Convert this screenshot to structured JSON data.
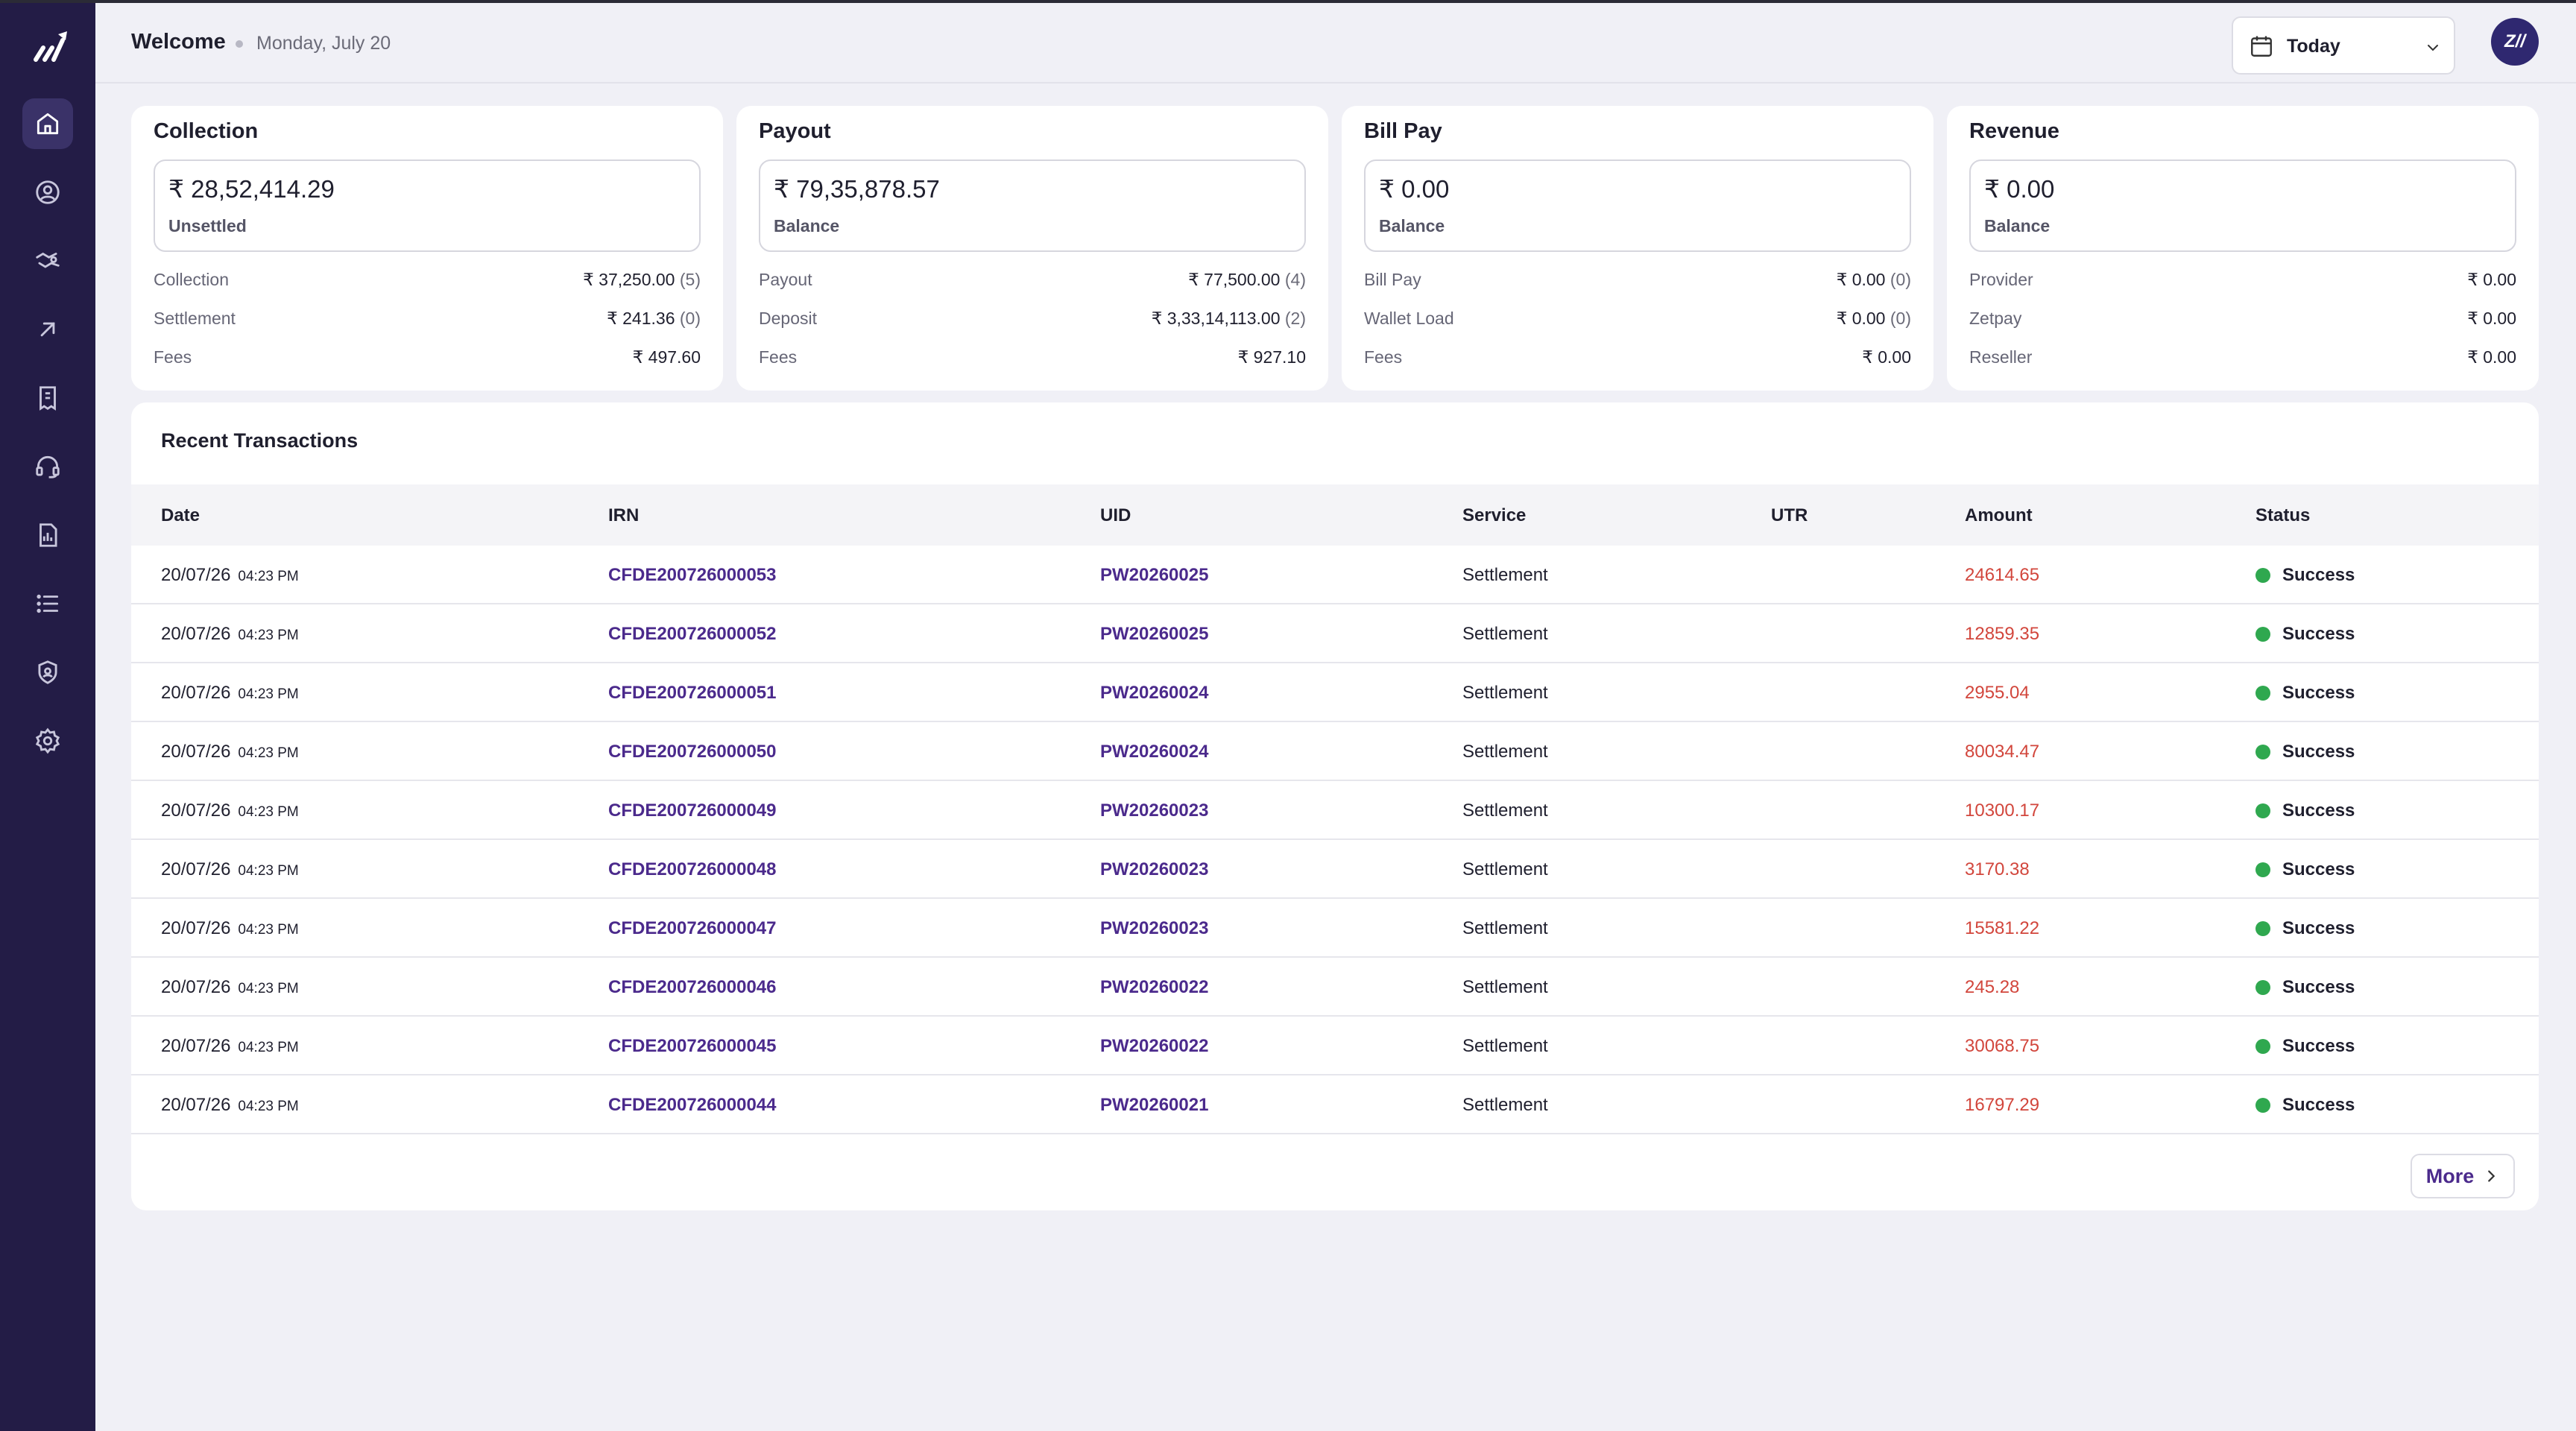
{
  "header": {
    "welcome": "Welcome",
    "date": "Monday, July 20",
    "date_filter": "Today",
    "avatar_initials": "Z//"
  },
  "sidebar": {
    "items": [
      {
        "icon": "home-icon",
        "active": true
      },
      {
        "icon": "user-icon",
        "active": false
      },
      {
        "icon": "handshake-icon",
        "active": false
      },
      {
        "icon": "arrow-up-right-icon",
        "active": false
      },
      {
        "icon": "bill-icon",
        "active": false
      },
      {
        "icon": "headset-icon",
        "active": false
      },
      {
        "icon": "report-icon",
        "active": false
      },
      {
        "icon": "list-icon",
        "active": false
      },
      {
        "icon": "shield-user-icon",
        "active": false
      },
      {
        "icon": "gear-icon",
        "active": false
      }
    ]
  },
  "cards": [
    {
      "title": "Collection",
      "amount": "₹ 28,52,414.29",
      "amount_label": "Unsettled",
      "rows": [
        {
          "label": "Collection",
          "value": "₹ 37,250.00",
          "count": "(5)"
        },
        {
          "label": "Settlement",
          "value": "₹ 241.36",
          "count": "(0)"
        },
        {
          "label": "Fees",
          "value": "₹ 497.60",
          "count": ""
        }
      ]
    },
    {
      "title": "Payout",
      "amount": "₹ 79,35,878.57",
      "amount_label": "Balance",
      "rows": [
        {
          "label": "Payout",
          "value": "₹ 77,500.00",
          "count": "(4)"
        },
        {
          "label": "Deposit",
          "value": "₹ 3,33,14,113.00",
          "count": "(2)"
        },
        {
          "label": "Fees",
          "value": "₹ 927.10",
          "count": ""
        }
      ]
    },
    {
      "title": "Bill Pay",
      "amount": "₹ 0.00",
      "amount_label": "Balance",
      "rows": [
        {
          "label": "Bill Pay",
          "value": "₹ 0.00",
          "count": "(0)"
        },
        {
          "label": "Wallet Load",
          "value": "₹ 0.00",
          "count": "(0)"
        },
        {
          "label": "Fees",
          "value": "₹ 0.00",
          "count": ""
        }
      ]
    },
    {
      "title": "Revenue",
      "amount": "₹ 0.00",
      "amount_label": "Balance",
      "rows": [
        {
          "label": "Provider",
          "value": "₹ 0.00",
          "count": ""
        },
        {
          "label": "Zetpay",
          "value": "₹ 0.00",
          "count": ""
        },
        {
          "label": "Reseller",
          "value": "₹ 0.00",
          "count": ""
        }
      ]
    }
  ],
  "transactions": {
    "title": "Recent Transactions",
    "columns": [
      "Date",
      "IRN",
      "UID",
      "Service",
      "UTR",
      "Amount",
      "Status"
    ],
    "rows": [
      {
        "date": "20/07/26",
        "time": "04:23 PM",
        "irn": "CFDE200726000053",
        "uid": "PW20260025",
        "service": "Settlement",
        "utr": "",
        "amount": "24614.65",
        "status": "Success"
      },
      {
        "date": "20/07/26",
        "time": "04:23 PM",
        "irn": "CFDE200726000052",
        "uid": "PW20260025",
        "service": "Settlement",
        "utr": "",
        "amount": "12859.35",
        "status": "Success"
      },
      {
        "date": "20/07/26",
        "time": "04:23 PM",
        "irn": "CFDE200726000051",
        "uid": "PW20260024",
        "service": "Settlement",
        "utr": "",
        "amount": "2955.04",
        "status": "Success"
      },
      {
        "date": "20/07/26",
        "time": "04:23 PM",
        "irn": "CFDE200726000050",
        "uid": "PW20260024",
        "service": "Settlement",
        "utr": "",
        "amount": "80034.47",
        "status": "Success"
      },
      {
        "date": "20/07/26",
        "time": "04:23 PM",
        "irn": "CFDE200726000049",
        "uid": "PW20260023",
        "service": "Settlement",
        "utr": "",
        "amount": "10300.17",
        "status": "Success"
      },
      {
        "date": "20/07/26",
        "time": "04:23 PM",
        "irn": "CFDE200726000048",
        "uid": "PW20260023",
        "service": "Settlement",
        "utr": "",
        "amount": "3170.38",
        "status": "Success"
      },
      {
        "date": "20/07/26",
        "time": "04:23 PM",
        "irn": "CFDE200726000047",
        "uid": "PW20260023",
        "service": "Settlement",
        "utr": "",
        "amount": "15581.22",
        "status": "Success"
      },
      {
        "date": "20/07/26",
        "time": "04:23 PM",
        "irn": "CFDE200726000046",
        "uid": "PW20260022",
        "service": "Settlement",
        "utr": "",
        "amount": "245.28",
        "status": "Success"
      },
      {
        "date": "20/07/26",
        "time": "04:23 PM",
        "irn": "CFDE200726000045",
        "uid": "PW20260022",
        "service": "Settlement",
        "utr": "",
        "amount": "30068.75",
        "status": "Success"
      },
      {
        "date": "20/07/26",
        "time": "04:23 PM",
        "irn": "CFDE200726000044",
        "uid": "PW20260021",
        "service": "Settlement",
        "utr": "",
        "amount": "16797.29",
        "status": "Success"
      }
    ],
    "more_label": "More"
  },
  "colors": {
    "sidebar": "#231c46",
    "accent": "#4b2a8c",
    "amount": "#d2463c",
    "success": "#2fa84f"
  }
}
